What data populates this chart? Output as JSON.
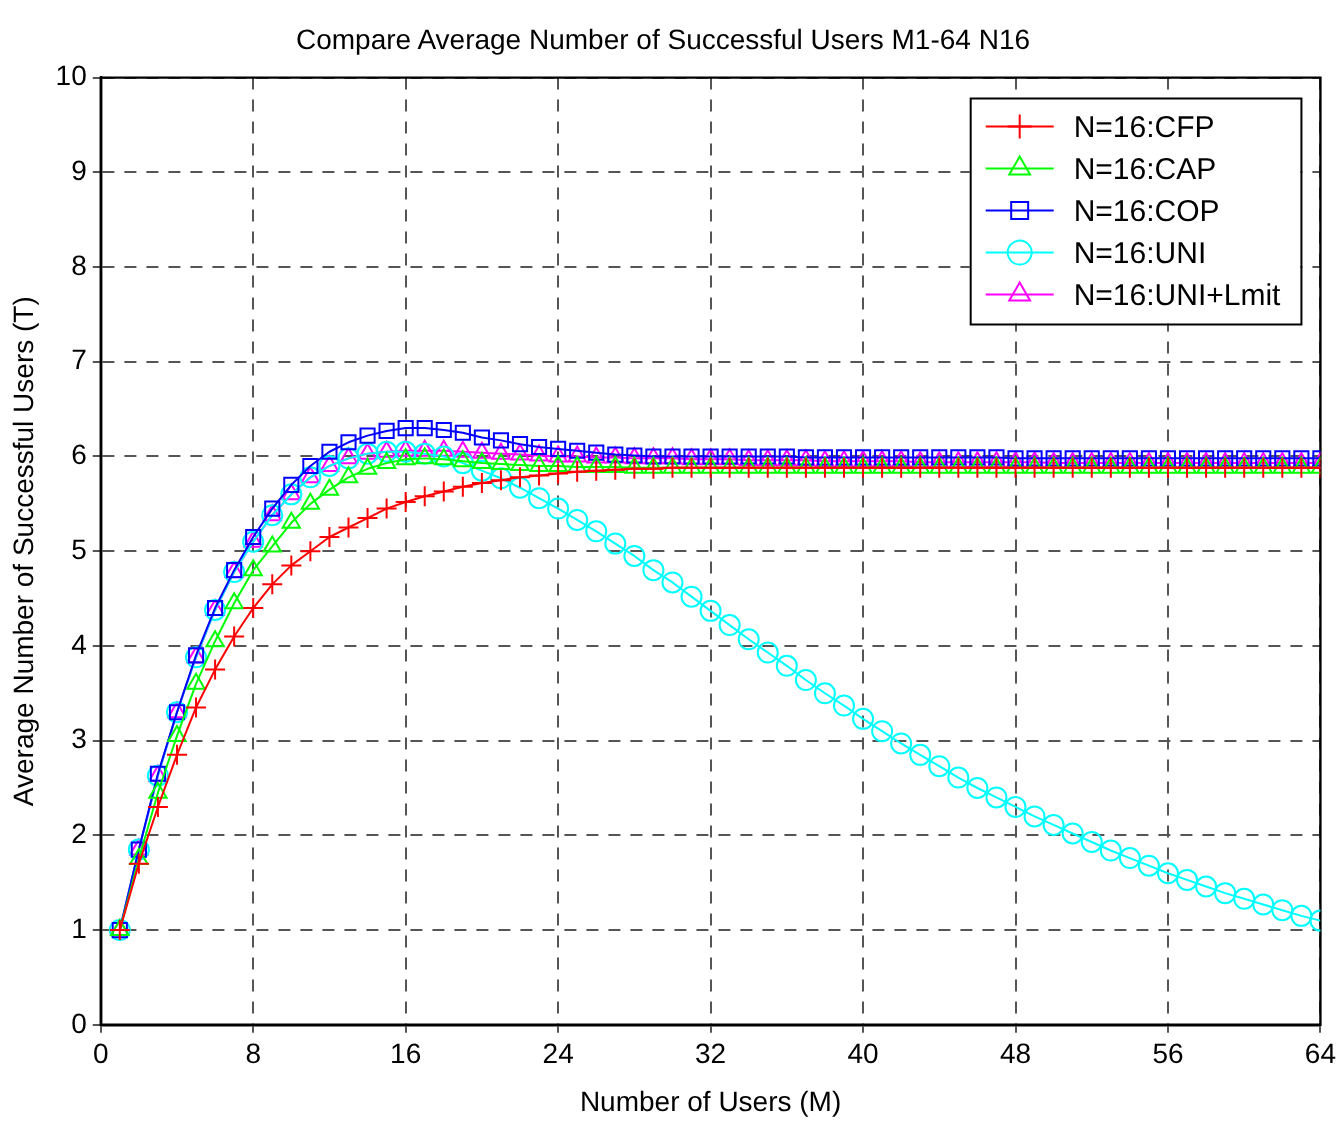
{
  "chart_data": {
    "type": "line",
    "title": "Compare Average Number of Successful Users M1-64 N16",
    "xlabel": "Number of Users (M)",
    "ylabel": "Average Number of Successful Users (T)",
    "x": [
      1,
      2,
      3,
      4,
      5,
      6,
      7,
      8,
      9,
      10,
      11,
      12,
      13,
      14,
      15,
      16,
      17,
      18,
      19,
      20,
      21,
      22,
      23,
      24,
      25,
      26,
      27,
      28,
      29,
      30,
      31,
      32,
      33,
      34,
      35,
      36,
      37,
      38,
      39,
      40,
      41,
      42,
      43,
      44,
      45,
      46,
      47,
      48,
      49,
      50,
      51,
      52,
      53,
      54,
      55,
      56,
      57,
      58,
      59,
      60,
      61,
      62,
      63,
      64
    ],
    "xlim": [
      0,
      64
    ],
    "xticks": [
      0,
      8,
      16,
      24,
      32,
      40,
      48,
      56,
      64
    ],
    "ylim": [
      0,
      10
    ],
    "yticks": [
      0,
      1,
      2,
      3,
      4,
      5,
      6,
      7,
      8,
      9,
      10
    ],
    "grid": true,
    "legend": "top right",
    "line_style": "solid",
    "series": [
      {
        "name": "N=16:CFP",
        "color": "#ff0000",
        "marker": "cross",
        "values": [
          1.0,
          1.7,
          2.3,
          2.85,
          3.35,
          3.75,
          4.1,
          4.4,
          4.65,
          4.85,
          5.0,
          5.15,
          5.25,
          5.35,
          5.45,
          5.52,
          5.58,
          5.63,
          5.68,
          5.72,
          5.75,
          5.78,
          5.8,
          5.82,
          5.84,
          5.85,
          5.86,
          5.87,
          5.87,
          5.88,
          5.88,
          5.88,
          5.88,
          5.88,
          5.88,
          5.88,
          5.88,
          5.88,
          5.88,
          5.88,
          5.88,
          5.88,
          5.88,
          5.88,
          5.88,
          5.88,
          5.88,
          5.88,
          5.88,
          5.88,
          5.88,
          5.88,
          5.88,
          5.88,
          5.88,
          5.88,
          5.88,
          5.88,
          5.88,
          5.88,
          5.88,
          5.88,
          5.88,
          5.88
        ]
      },
      {
        "name": "N=16:CAP",
        "color": "#00ff00",
        "marker": "triangle",
        "values": [
          1.0,
          1.75,
          2.45,
          3.05,
          3.6,
          4.05,
          4.45,
          4.8,
          5.05,
          5.3,
          5.5,
          5.65,
          5.78,
          5.87,
          5.93,
          5.97,
          5.98,
          5.97,
          5.95,
          5.93,
          5.92,
          5.91,
          5.9,
          5.9,
          5.89,
          5.89,
          5.89,
          5.88,
          5.88,
          5.88,
          5.88,
          5.88,
          5.88,
          5.88,
          5.88,
          5.88,
          5.88,
          5.88,
          5.88,
          5.88,
          5.88,
          5.88,
          5.88,
          5.88,
          5.88,
          5.88,
          5.88,
          5.88,
          5.88,
          5.88,
          5.88,
          5.88,
          5.88,
          5.88,
          5.88,
          5.88,
          5.88,
          5.88,
          5.88,
          5.88,
          5.88,
          5.88,
          5.88,
          5.88
        ]
      },
      {
        "name": "N=16:COP",
        "color": "#0000ff",
        "marker": "square",
        "values": [
          1.0,
          1.85,
          2.65,
          3.3,
          3.9,
          4.4,
          4.8,
          5.15,
          5.45,
          5.7,
          5.9,
          6.05,
          6.15,
          6.22,
          6.27,
          6.3,
          6.3,
          6.28,
          6.25,
          6.2,
          6.17,
          6.13,
          6.1,
          6.08,
          6.06,
          6.04,
          6.02,
          6.01,
          6.0,
          6.0,
          6.0,
          6.0,
          6.0,
          6.0,
          6.0,
          6.0,
          5.99,
          5.99,
          5.99,
          5.99,
          5.99,
          5.99,
          5.99,
          5.99,
          5.99,
          5.99,
          5.99,
          5.98,
          5.98,
          5.98,
          5.98,
          5.98,
          5.98,
          5.98,
          5.98,
          5.98,
          5.98,
          5.98,
          5.98,
          5.98,
          5.98,
          5.98,
          5.98,
          5.98
        ]
      },
      {
        "name": "N=16:UNI",
        "color": "#00ffff",
        "marker": "circle",
        "values": [
          1.0,
          1.85,
          2.63,
          3.3,
          3.88,
          4.38,
          4.78,
          5.1,
          5.38,
          5.6,
          5.78,
          5.9,
          5.98,
          6.03,
          6.05,
          6.05,
          6.03,
          6.0,
          5.93,
          5.85,
          5.77,
          5.67,
          5.56,
          5.45,
          5.33,
          5.21,
          5.08,
          4.95,
          4.8,
          4.67,
          4.52,
          4.37,
          4.22,
          4.07,
          3.93,
          3.79,
          3.64,
          3.5,
          3.37,
          3.23,
          3.1,
          2.97,
          2.85,
          2.73,
          2.61,
          2.5,
          2.4,
          2.3,
          2.2,
          2.11,
          2.02,
          1.93,
          1.84,
          1.76,
          1.68,
          1.6,
          1.53,
          1.46,
          1.39,
          1.33,
          1.27,
          1.21,
          1.15,
          1.1
        ]
      },
      {
        "name": "N=16:UNI+Lmit",
        "color": "#ff00ff",
        "marker": "triangle",
        "values": [
          1.0,
          1.85,
          2.63,
          3.3,
          3.88,
          4.38,
          4.78,
          5.1,
          5.38,
          5.6,
          5.78,
          5.9,
          5.98,
          6.03,
          6.05,
          6.06,
          6.06,
          6.06,
          6.05,
          6.04,
          6.03,
          6.02,
          6.01,
          6.0,
          6.0,
          5.99,
          5.99,
          5.98,
          5.98,
          5.98,
          5.97,
          5.97,
          5.97,
          5.96,
          5.96,
          5.96,
          5.96,
          5.95,
          5.95,
          5.95,
          5.95,
          5.95,
          5.94,
          5.94,
          5.94,
          5.94,
          5.94,
          5.94,
          5.94,
          5.93,
          5.93,
          5.93,
          5.93,
          5.93,
          5.93,
          5.93,
          5.93,
          5.93,
          5.93,
          5.93,
          5.93,
          5.93,
          5.93,
          5.93
        ]
      }
    ]
  }
}
